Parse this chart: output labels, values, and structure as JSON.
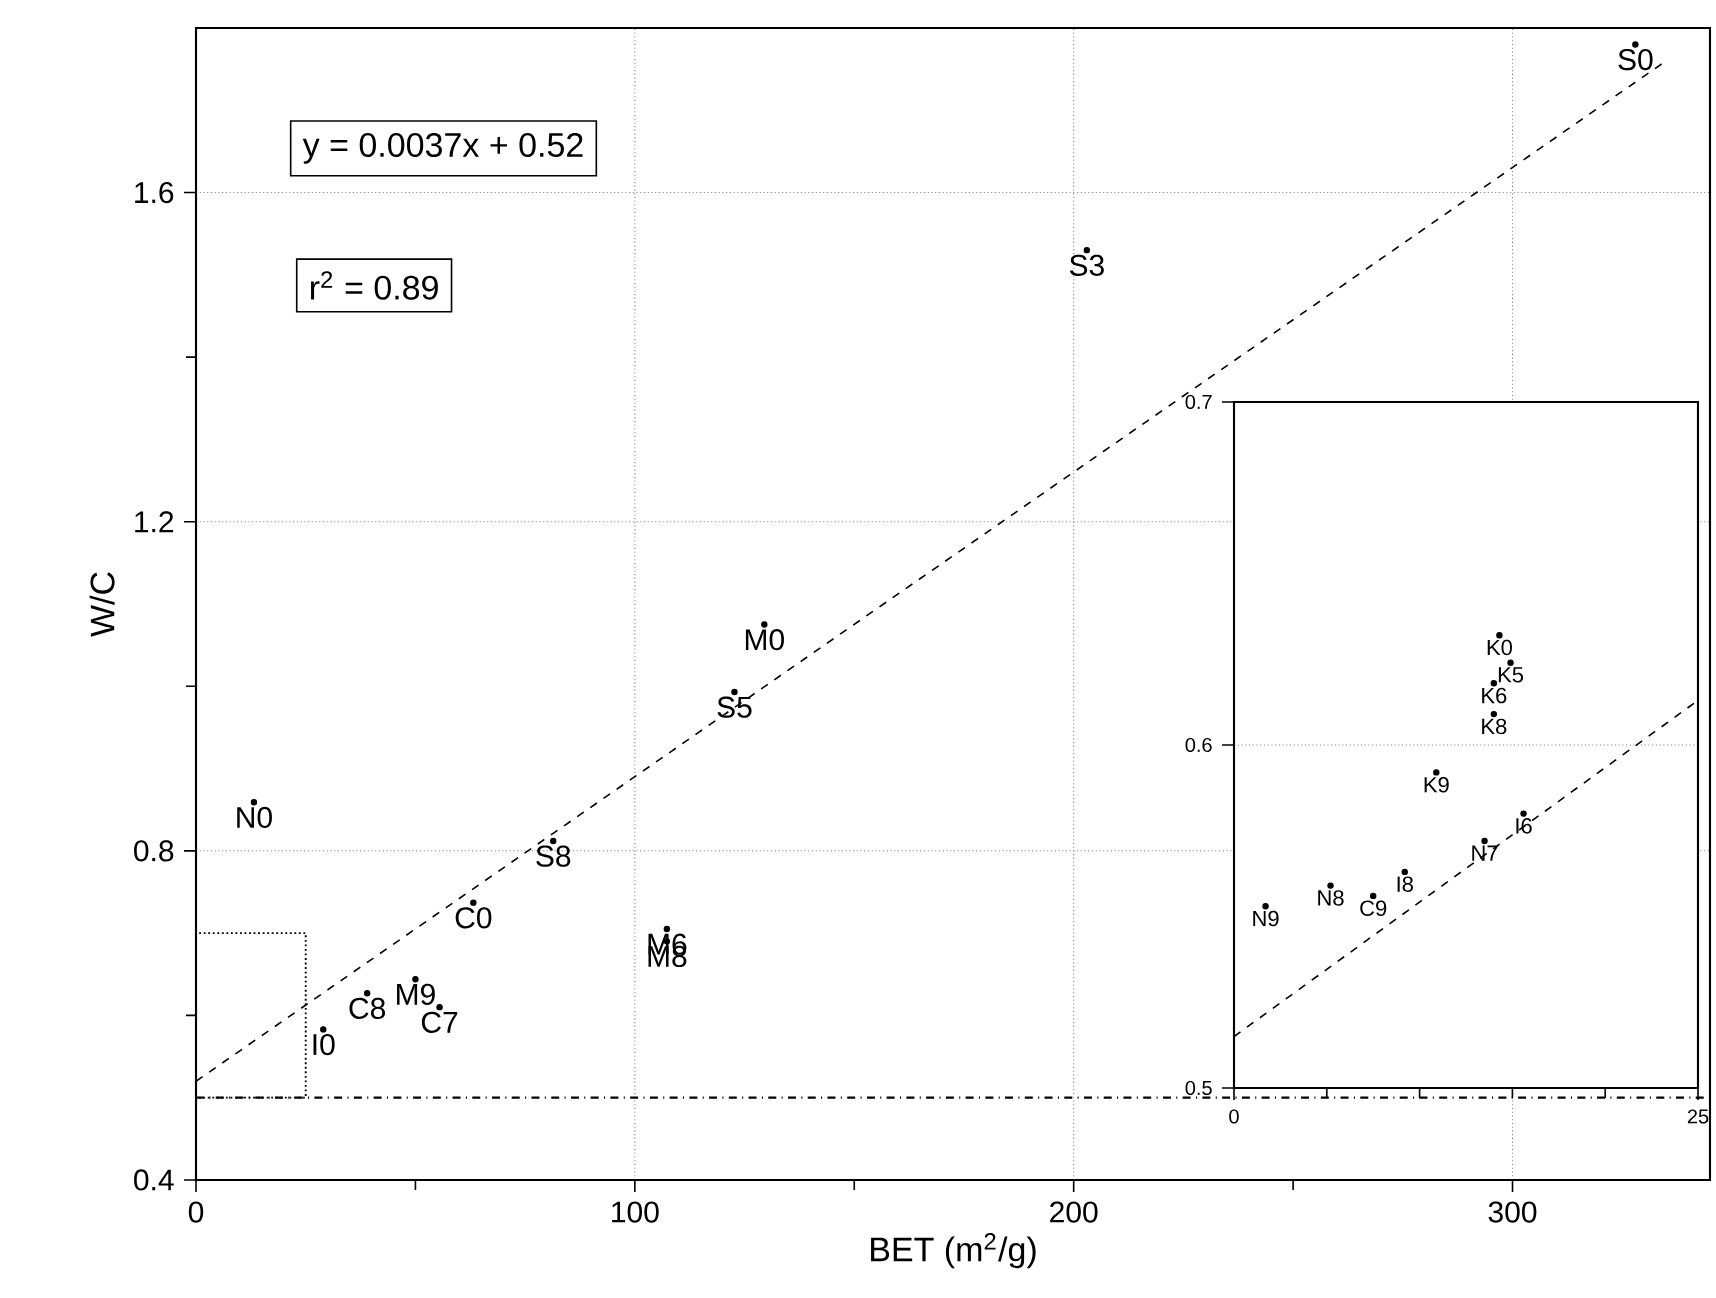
{
  "chart_data": [
    {
      "type": "scatter",
      "xlabel": "BET (m$^{2}$/g)",
      "ylabel": "W/C",
      "xlim": [
        0,
        345
      ],
      "ylim": [
        0.4,
        1.8
      ],
      "xticks": [
        0,
        {
          "value": 50,
          "label": null
        },
        100,
        {
          "value": 150,
          "label": null
        },
        200,
        {
          "value": 250,
          "label": null
        },
        300
      ],
      "yticks": [
        0.4,
        {
          "value": 0.6,
          "label": null
        },
        0.8,
        {
          "value": 1.0,
          "label": null
        },
        1.2,
        {
          "value": 1.4,
          "label": null
        },
        1.6
      ],
      "grid": true,
      "annotations": [
        "y = 0.0037x + 0.52",
        "r$^{2}$ = 0.89"
      ],
      "ref_lines": [
        {
          "axis": "y",
          "value": 0.5,
          "label": null,
          "color": "#000000",
          "line_style": "dashdot"
        }
      ],
      "series": [
        {
          "color": "#000000",
          "marker": "circle",
          "x": [
            328,
            203,
            129.5,
            122.7,
            13.2,
            81.4,
            63.2,
            107.3,
            107.3,
            50,
            39,
            55.5,
            29
          ],
          "values": [
            1.78,
            1.53,
            1.075,
            0.993,
            0.859,
            0.812,
            0.737,
            0.705,
            0.69,
            0.644,
            0.627,
            0.61,
            0.583
          ],
          "value_labels": [
            "S0",
            "S3",
            "M0",
            "S5",
            "N0",
            "S8",
            "C0",
            "M6",
            "M8",
            "M9",
            "C8",
            "C7",
            "I0"
          ]
        },
        {
          "type": "line",
          "color": "#000000",
          "line_style": "dashed",
          "x": [
            0,
            335
          ],
          "values": [
            0.52,
            1.76
          ]
        }
      ]
    },
    {
      "type": "scatter",
      "xlim": [
        0,
        25
      ],
      "ylim": [
        0.5,
        0.7
      ],
      "xticks": [
        0,
        {
          "value": 5,
          "label": null
        },
        {
          "value": 10,
          "label": null
        },
        {
          "value": 15,
          "label": null
        },
        {
          "value": 20,
          "label": null
        },
        25
      ],
      "yticks": [
        0.5,
        0.6,
        0.7
      ],
      "grid": "y",
      "series": [
        {
          "color": "#000000",
          "marker": "circle",
          "x": [
            14.3,
            14.9,
            14.0,
            14.0,
            10.9,
            15.6,
            13.5,
            9.2,
            5.2,
            7.5,
            1.7
          ],
          "values": [
            0.632,
            0.624,
            0.618,
            0.609,
            0.592,
            0.58,
            0.572,
            0.563,
            0.559,
            0.556,
            0.553
          ],
          "value_labels": [
            "K0",
            "K5",
            "K6",
            "K8",
            "K9",
            "I6",
            "N7",
            "I8",
            "N8",
            "C9",
            "N9"
          ]
        },
        {
          "type": "line",
          "color": "#000000",
          "line_style": "dashed",
          "x": [
            0,
            25
          ],
          "values": [
            0.515,
            0.613
          ]
        }
      ]
    }
  ]
}
